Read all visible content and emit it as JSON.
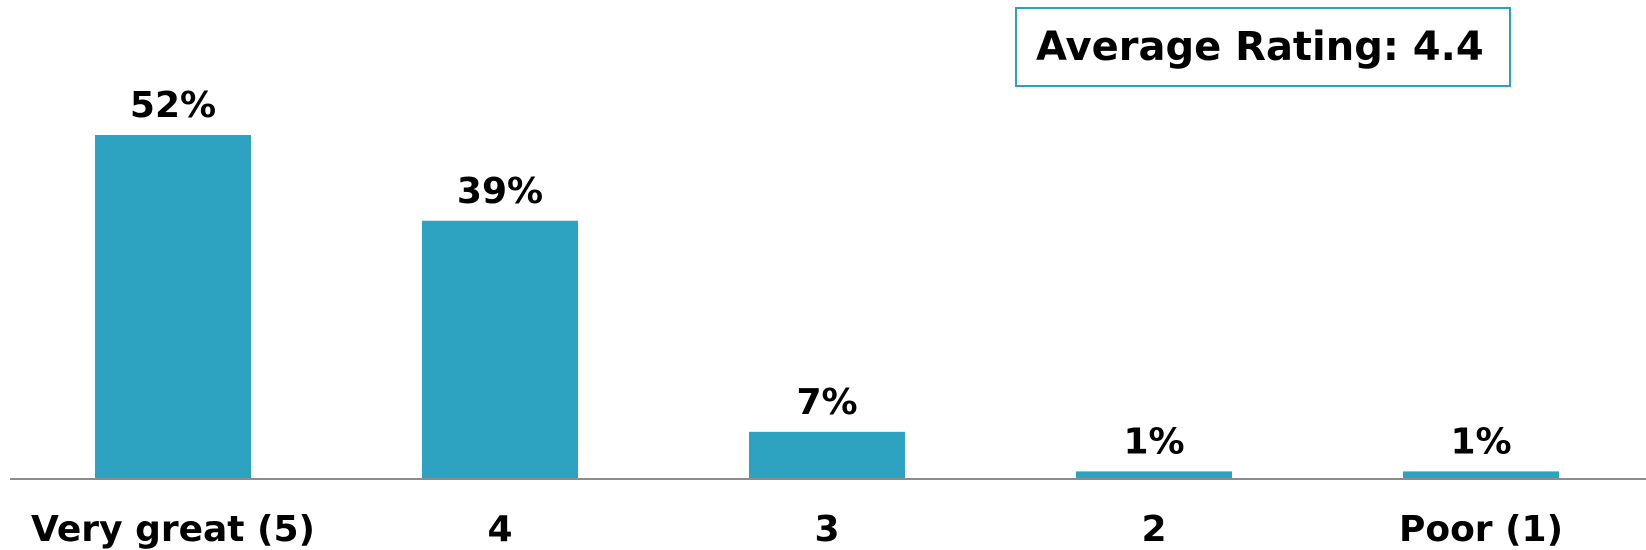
{
  "summary": {
    "average_label": "Average Rating: 4.4"
  },
  "colors": {
    "bar": "#2ea3c1",
    "box_border": "#2aa1bd",
    "axis": "#8c8c8c"
  },
  "chart_data": {
    "type": "bar",
    "categories": [
      "Very great (5)",
      "4",
      "3",
      "2",
      "Poor (1)"
    ],
    "values": [
      52,
      39,
      7,
      1,
      1
    ],
    "value_labels": [
      "52%",
      "39%",
      "7%",
      "1%",
      "1%"
    ],
    "value_unit": "%",
    "ylim": [
      0,
      52
    ],
    "grid": false,
    "legend": "none"
  }
}
